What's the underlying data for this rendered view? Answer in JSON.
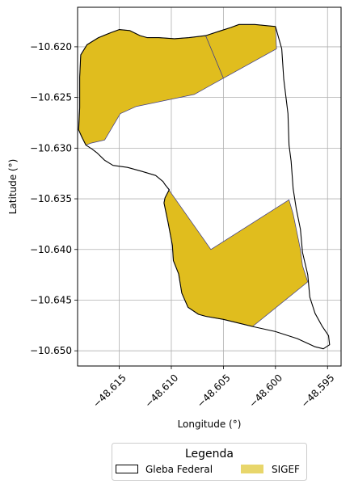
{
  "chart_data": {
    "type": "map",
    "xlabel": "Longitude (°)",
    "ylabel": "Latitude (°)",
    "xlim": [
      -48.619,
      -48.5937
    ],
    "ylim": [
      -10.6515,
      -10.6161
    ],
    "grid": true,
    "x_ticks": [
      -48.615,
      -48.61,
      -48.605,
      -48.6,
      -48.595
    ],
    "x_tick_labels": [
      "−48.615",
      "−48.610",
      "−48.605",
      "−48.600",
      "−48.595"
    ],
    "y_ticks": [
      -10.62,
      -10.625,
      -10.63,
      -10.635,
      -10.64,
      -10.645,
      -10.65
    ],
    "y_tick_labels": [
      "−10.620",
      "−10.625",
      "−10.630",
      "−10.635",
      "−10.640",
      "−10.645",
      "−10.650"
    ],
    "legend": {
      "title": "Legenda",
      "placement": "bottom-center, below plot",
      "entries": [
        {
          "label": "Gleba Federal",
          "style": "outline",
          "edge_color": "#000000",
          "fill": "none"
        },
        {
          "label": "SIGEF",
          "style": "fill",
          "fill": "#e8d66b"
        }
      ]
    },
    "colors": {
      "gleba_outline": "#000000",
      "sigef_fill": "#e0bd1e",
      "sigef_edge": "#3a3a8c",
      "grid": "#b0b0b0"
    },
    "gleba_federal": [
      [
        -48.6187,
        -10.6208
      ],
      [
        -48.6181,
        -10.6198
      ],
      [
        -48.617,
        -10.6191
      ],
      [
        -48.6158,
        -10.6186
      ],
      [
        -48.615,
        -10.6183
      ],
      [
        -48.614,
        -10.6184
      ],
      [
        -48.613,
        -10.6189
      ],
      [
        -48.6123,
        -10.6191
      ],
      [
        -48.6112,
        -10.6191
      ],
      [
        -48.6097,
        -10.6192
      ],
      [
        -48.6083,
        -10.6191
      ],
      [
        -48.6067,
        -10.6189
      ],
      [
        -48.6052,
        -10.6184
      ],
      [
        -48.6043,
        -10.6181
      ],
      [
        -48.6035,
        -10.6178
      ],
      [
        -48.602,
        -10.6178
      ],
      [
        -48.6,
        -10.618
      ],
      [
        -48.5994,
        -10.6202
      ],
      [
        -48.5992,
        -10.6232
      ],
      [
        -48.5988,
        -10.6266
      ],
      [
        -48.5987,
        -10.6297
      ],
      [
        -48.5985,
        -10.6313
      ],
      [
        -48.5983,
        -10.634
      ],
      [
        -48.598,
        -10.636
      ],
      [
        -48.5976,
        -10.638
      ],
      [
        -48.5974,
        -10.6403
      ],
      [
        -48.5969,
        -10.6425
      ],
      [
        -48.5967,
        -10.6447
      ],
      [
        -48.5962,
        -10.6463
      ],
      [
        -48.5955,
        -10.6476
      ],
      [
        -48.5949,
        -10.6485
      ],
      [
        -48.5948,
        -10.6494
      ],
      [
        -48.5954,
        -10.6498
      ],
      [
        -48.5962,
        -10.6496
      ],
      [
        -48.5979,
        -10.6488
      ],
      [
        -48.5991,
        -10.6484
      ],
      [
        -48.6,
        -10.6481
      ],
      [
        -48.6022,
        -10.6476
      ],
      [
        -48.6034,
        -10.6473
      ],
      [
        -48.605,
        -10.6469
      ],
      [
        -48.6067,
        -10.6466
      ],
      [
        -48.6074,
        -10.6464
      ],
      [
        -48.6084,
        -10.6457
      ],
      [
        -48.609,
        -10.6443
      ],
      [
        -48.6093,
        -10.6424
      ],
      [
        -48.6098,
        -10.6411
      ],
      [
        -48.6099,
        -10.6396
      ],
      [
        -48.6103,
        -10.6374
      ],
      [
        -48.6107,
        -10.6354
      ],
      [
        -48.6106,
        -10.6349
      ],
      [
        -48.6102,
        -10.6341
      ],
      [
        -48.6106,
        -10.6336
      ],
      [
        -48.6108,
        -10.6333
      ],
      [
        -48.6115,
        -10.6327
      ],
      [
        -48.6128,
        -10.6323
      ],
      [
        -48.6142,
        -10.6319
      ],
      [
        -48.6149,
        -10.6318
      ],
      [
        -48.6156,
        -10.6317
      ],
      [
        -48.6164,
        -10.6312
      ],
      [
        -48.6171,
        -10.6305
      ],
      [
        -48.6176,
        -10.6301
      ],
      [
        -48.6182,
        -10.6297
      ],
      [
        -48.6186,
        -10.6289
      ],
      [
        -48.6189,
        -10.6282
      ],
      [
        -48.6188,
        -10.626
      ],
      [
        -48.6188,
        -10.623
      ],
      [
        -48.6187,
        -10.6208
      ]
    ],
    "sigef_parcels": [
      [
        [
          -48.6187,
          -10.6208
        ],
        [
          -48.6181,
          -10.6198
        ],
        [
          -48.617,
          -10.6191
        ],
        [
          -48.6158,
          -10.6186
        ],
        [
          -48.615,
          -10.6183
        ],
        [
          -48.614,
          -10.6184
        ],
        [
          -48.613,
          -10.6189
        ],
        [
          -48.6123,
          -10.6191
        ],
        [
          -48.6112,
          -10.6191
        ],
        [
          -48.6097,
          -10.6192
        ],
        [
          -48.6083,
          -10.6191
        ],
        [
          -48.6067,
          -10.6189
        ],
        [
          -48.605,
          -10.6231
        ],
        [
          -48.6078,
          -10.6247
        ],
        [
          -48.6134,
          -10.6259
        ],
        [
          -48.6149,
          -10.6266
        ],
        [
          -48.6164,
          -10.6292
        ],
        [
          -48.6177,
          -10.6295
        ],
        [
          -48.6182,
          -10.6297
        ],
        [
          -48.6186,
          -10.6289
        ],
        [
          -48.6189,
          -10.6282
        ],
        [
          -48.6188,
          -10.626
        ],
        [
          -48.6188,
          -10.623
        ],
        [
          -48.6187,
          -10.6208
        ]
      ],
      [
        [
          -48.6067,
          -10.6189
        ],
        [
          -48.6052,
          -10.6184
        ],
        [
          -48.6043,
          -10.6181
        ],
        [
          -48.6035,
          -10.6178
        ],
        [
          -48.602,
          -10.6178
        ],
        [
          -48.6,
          -10.618
        ],
        [
          -48.5999,
          -10.6202
        ],
        [
          -48.605,
          -10.6231
        ],
        [
          -48.6067,
          -10.6189
        ]
      ],
      [
        [
          -48.6106,
          -10.6349
        ],
        [
          -48.6102,
          -10.6341
        ],
        [
          -48.6106,
          -10.6336
        ],
        [
          -48.6108,
          -10.6333
        ],
        [
          -48.6062,
          -10.64
        ],
        [
          -48.5987,
          -10.6351
        ],
        [
          -48.5983,
          -10.6365
        ],
        [
          -48.598,
          -10.638
        ],
        [
          -48.5976,
          -10.64
        ],
        [
          -48.5974,
          -10.6416
        ],
        [
          -48.5969,
          -10.6432
        ],
        [
          -48.6022,
          -10.6476
        ],
        [
          -48.6034,
          -10.6473
        ],
        [
          -48.605,
          -10.6469
        ],
        [
          -48.6067,
          -10.6466
        ],
        [
          -48.6074,
          -10.6464
        ],
        [
          -48.6084,
          -10.6457
        ],
        [
          -48.609,
          -10.6443
        ],
        [
          -48.6093,
          -10.6424
        ],
        [
          -48.6098,
          -10.6411
        ],
        [
          -48.6099,
          -10.6396
        ],
        [
          -48.6103,
          -10.6374
        ],
        [
          -48.6107,
          -10.6354
        ],
        [
          -48.6106,
          -10.6349
        ]
      ]
    ]
  }
}
